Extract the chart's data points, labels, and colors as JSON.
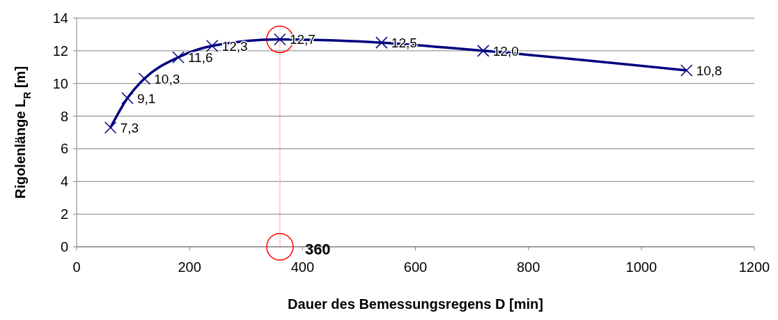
{
  "chart_data": {
    "type": "line",
    "xlabel": "Dauer des Bemessungsregens  D [min]",
    "ylabel": "Rigolenlänge   L$_{R}$ [m]",
    "x": [
      60,
      90,
      120,
      180,
      240,
      360,
      540,
      720,
      1080
    ],
    "series": [
      {
        "color": "#000080",
        "values": [
          7.3,
          9.1,
          10.3,
          11.6,
          12.3,
          12.7,
          12.5,
          12.0,
          10.8
        ],
        "value_labels": [
          "7,3",
          "9,1",
          "10,3",
          "11,6",
          "12,3",
          "12,7",
          "12,5",
          "12,0",
          "10,8"
        ]
      }
    ],
    "xlim": [
      0,
      1200
    ],
    "xticks": [
      0,
      200,
      400,
      600,
      800,
      1000,
      1200
    ],
    "ylim": [
      0,
      14
    ],
    "yticks": [
      0,
      2,
      4,
      6,
      8,
      10,
      12,
      14
    ],
    "grid": "y",
    "marker": "cross",
    "line_style": "solid",
    "ref_lines": [
      {
        "axis": "x",
        "value": 360,
        "label": "360",
        "color": "#ff0000",
        "line_style": "dotted"
      }
    ]
  }
}
